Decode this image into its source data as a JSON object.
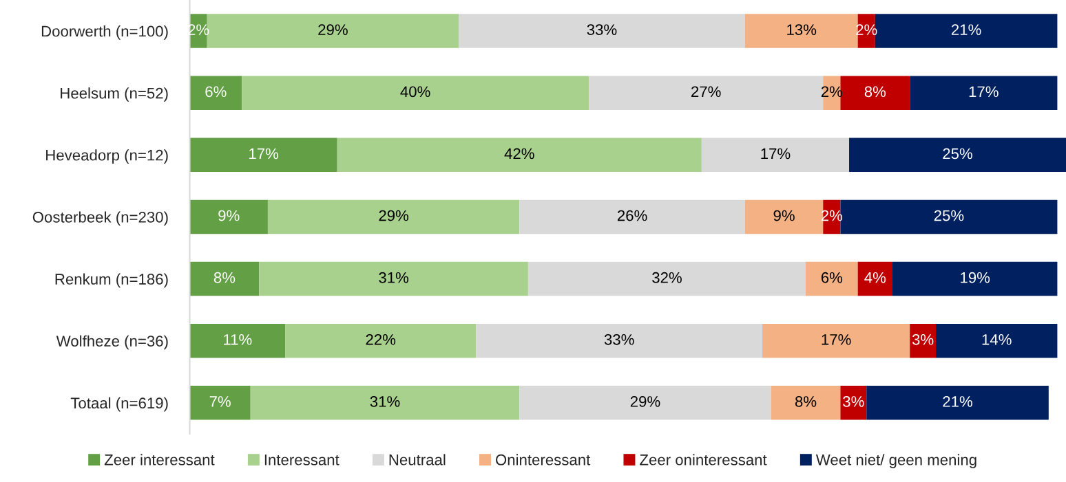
{
  "chart_data": {
    "type": "bar",
    "orientation": "horizontal",
    "stacked": true,
    "legend": "bottom",
    "grid": false,
    "tick_labels": "y",
    "categories": [
      "Doorwerth (n=100)",
      "Heelsum (n=52)",
      "Heveadorp (n=12)",
      "Oosterbeek (n=230)",
      "Renkum (n=186)",
      "Wolfheze (n=36)",
      "Totaal (n=619)"
    ],
    "series": [
      {
        "name": "Zeer interessant",
        "color": "#63a045",
        "values": [
          2,
          6,
          17,
          9,
          8,
          11,
          7
        ],
        "value_labels": [
          "2%",
          "6%",
          "17%",
          "9%",
          "8%",
          "11%",
          "7%"
        ]
      },
      {
        "name": "Interessant",
        "color": "#a9d18e",
        "values": [
          29,
          40,
          42,
          29,
          31,
          22,
          31
        ],
        "value_labels": [
          "29%",
          "40%",
          "42%",
          "29%",
          "31%",
          "22%",
          "31%"
        ]
      },
      {
        "name": "Neutraal",
        "color": "#d9d9d9",
        "values": [
          33,
          27,
          17,
          26,
          32,
          33,
          29
        ],
        "value_labels": [
          "33%",
          "27%",
          "17%",
          "26%",
          "32%",
          "33%",
          "29%"
        ]
      },
      {
        "name": "Oninteressant",
        "color": "#f4b183",
        "values": [
          13,
          2,
          null,
          9,
          6,
          17,
          8
        ],
        "value_labels": [
          "13%",
          "2%",
          null,
          "9%",
          "6%",
          "17%",
          "8%"
        ]
      },
      {
        "name": "Zeer oninteressant",
        "color": "#c00000",
        "values": [
          2,
          8,
          null,
          2,
          4,
          3,
          3
        ],
        "value_labels": [
          "2%",
          "8%",
          null,
          "2%",
          "4%",
          "3%",
          "3%"
        ]
      },
      {
        "name": "Weet niet/ geen mening",
        "color": "#002060",
        "values": [
          21,
          17,
          25,
          25,
          19,
          14,
          21
        ],
        "value_labels": [
          "21%",
          "17%",
          "25%",
          "25%",
          "19%",
          "14%",
          "21%"
        ]
      }
    ]
  }
}
